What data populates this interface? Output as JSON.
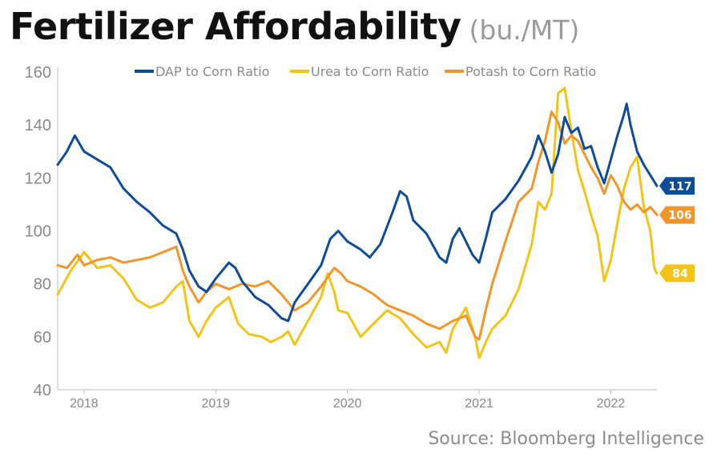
{
  "title": "Fertilizer Affordability",
  "subtitle": "(bu./MT)",
  "source": "Source: Bloomberg Intelligence",
  "chart_data": {
    "type": "line",
    "x_ticks": [
      "2018",
      "2019",
      "2020",
      "2021",
      "2022"
    ],
    "x_range": [
      2017.8,
      2022.15
    ],
    "ylim": [
      40,
      160
    ],
    "y_ticks": [
      40,
      60,
      80,
      100,
      120,
      140,
      160
    ],
    "grid": false,
    "legend_position": "top",
    "series": [
      {
        "name": "DAP to Corn Ratio",
        "color": "#0E4C9A",
        "end_label": "117",
        "points": [
          [
            2017.8,
            125
          ],
          [
            2017.87,
            130
          ],
          [
            2017.93,
            136
          ],
          [
            2018.0,
            130
          ],
          [
            2018.1,
            127
          ],
          [
            2018.2,
            124
          ],
          [
            2018.3,
            116
          ],
          [
            2018.4,
            111
          ],
          [
            2018.5,
            107
          ],
          [
            2018.6,
            102
          ],
          [
            2018.7,
            99
          ],
          [
            2018.75,
            93
          ],
          [
            2018.8,
            85
          ],
          [
            2018.87,
            79
          ],
          [
            2018.93,
            77
          ],
          [
            2019.0,
            82
          ],
          [
            2019.1,
            88
          ],
          [
            2019.15,
            86
          ],
          [
            2019.2,
            81
          ],
          [
            2019.3,
            75
          ],
          [
            2019.4,
            72
          ],
          [
            2019.5,
            67
          ],
          [
            2019.55,
            66
          ],
          [
            2019.6,
            73
          ],
          [
            2019.7,
            80
          ],
          [
            2019.8,
            87
          ],
          [
            2019.87,
            97
          ],
          [
            2019.93,
            100
          ],
          [
            2020.0,
            96
          ],
          [
            2020.1,
            93
          ],
          [
            2020.17,
            90
          ],
          [
            2020.25,
            95
          ],
          [
            2020.35,
            108
          ],
          [
            2020.4,
            115
          ],
          [
            2020.45,
            113
          ],
          [
            2020.5,
            104
          ],
          [
            2020.6,
            99
          ],
          [
            2020.7,
            90
          ],
          [
            2020.75,
            88
          ],
          [
            2020.8,
            97
          ],
          [
            2020.85,
            101
          ],
          [
            2020.9,
            96
          ],
          [
            2020.95,
            91
          ],
          [
            2021.0,
            88
          ],
          [
            2021.05,
            97
          ],
          [
            2021.1,
            107
          ],
          [
            2021.2,
            112
          ],
          [
            2021.3,
            119
          ],
          [
            2021.4,
            128
          ],
          [
            2021.45,
            136
          ],
          [
            2021.5,
            130
          ],
          [
            2021.55,
            122
          ],
          [
            2021.6,
            129
          ],
          [
            2021.65,
            143
          ],
          [
            2021.7,
            137
          ],
          [
            2021.75,
            139
          ],
          [
            2021.8,
            131
          ],
          [
            2021.85,
            132
          ],
          [
            2021.9,
            124
          ],
          [
            2021.95,
            118
          ],
          [
            2022.0,
            127
          ],
          [
            2022.05,
            136
          ],
          [
            2022.1,
            144
          ],
          [
            2022.12,
            148
          ],
          [
            2022.15,
            140
          ],
          [
            2022.2,
            130
          ],
          [
            2022.25,
            125
          ],
          [
            2022.3,
            121
          ],
          [
            2022.35,
            117
          ]
        ]
      },
      {
        "name": "Urea to Corn Ratio",
        "color": "#F2C41A",
        "end_label": "84",
        "points": [
          [
            2017.8,
            76
          ],
          [
            2017.9,
            85
          ],
          [
            2018.0,
            92
          ],
          [
            2018.1,
            86
          ],
          [
            2018.2,
            87
          ],
          [
            2018.3,
            82
          ],
          [
            2018.4,
            74
          ],
          [
            2018.5,
            71
          ],
          [
            2018.6,
            73
          ],
          [
            2018.7,
            79
          ],
          [
            2018.75,
            81
          ],
          [
            2018.8,
            66
          ],
          [
            2018.87,
            60
          ],
          [
            2018.93,
            66
          ],
          [
            2019.0,
            71
          ],
          [
            2019.1,
            75
          ],
          [
            2019.17,
            65
          ],
          [
            2019.25,
            61
          ],
          [
            2019.35,
            60
          ],
          [
            2019.42,
            58
          ],
          [
            2019.5,
            60
          ],
          [
            2019.55,
            62
          ],
          [
            2019.6,
            57
          ],
          [
            2019.7,
            66
          ],
          [
            2019.8,
            75
          ],
          [
            2019.85,
            84
          ],
          [
            2019.9,
            77
          ],
          [
            2019.93,
            70
          ],
          [
            2020.0,
            69
          ],
          [
            2020.1,
            60
          ],
          [
            2020.2,
            65
          ],
          [
            2020.3,
            70
          ],
          [
            2020.4,
            67
          ],
          [
            2020.5,
            61
          ],
          [
            2020.6,
            56
          ],
          [
            2020.7,
            58
          ],
          [
            2020.75,
            54
          ],
          [
            2020.8,
            63
          ],
          [
            2020.9,
            71
          ],
          [
            2020.97,
            60
          ],
          [
            2021.0,
            52
          ],
          [
            2021.05,
            58
          ],
          [
            2021.1,
            63
          ],
          [
            2021.2,
            68
          ],
          [
            2021.3,
            78
          ],
          [
            2021.4,
            95
          ],
          [
            2021.45,
            111
          ],
          [
            2021.5,
            108
          ],
          [
            2021.55,
            114
          ],
          [
            2021.6,
            152
          ],
          [
            2021.65,
            154
          ],
          [
            2021.7,
            138
          ],
          [
            2021.75,
            123
          ],
          [
            2021.8,
            115
          ],
          [
            2021.85,
            106
          ],
          [
            2021.9,
            98
          ],
          [
            2021.95,
            81
          ],
          [
            2022.0,
            89
          ],
          [
            2022.05,
            103
          ],
          [
            2022.1,
            116
          ],
          [
            2022.15,
            124
          ],
          [
            2022.2,
            128
          ],
          [
            2022.25,
            109
          ],
          [
            2022.3,
            100
          ],
          [
            2022.33,
            86
          ],
          [
            2022.35,
            84
          ]
        ]
      },
      {
        "name": "Potash to Corn Ratio",
        "color": "#F0962A",
        "end_label": "106",
        "points": [
          [
            2017.8,
            87
          ],
          [
            2017.87,
            86
          ],
          [
            2017.95,
            91
          ],
          [
            2018.0,
            87
          ],
          [
            2018.1,
            89
          ],
          [
            2018.2,
            90
          ],
          [
            2018.3,
            88
          ],
          [
            2018.4,
            89
          ],
          [
            2018.5,
            90
          ],
          [
            2018.6,
            92
          ],
          [
            2018.7,
            94
          ],
          [
            2018.75,
            85
          ],
          [
            2018.8,
            79
          ],
          [
            2018.87,
            73
          ],
          [
            2018.93,
            77
          ],
          [
            2019.0,
            80
          ],
          [
            2019.1,
            78
          ],
          [
            2019.2,
            80
          ],
          [
            2019.3,
            79
          ],
          [
            2019.4,
            81
          ],
          [
            2019.5,
            76
          ],
          [
            2019.6,
            70
          ],
          [
            2019.7,
            73
          ],
          [
            2019.8,
            79
          ],
          [
            2019.9,
            86
          ],
          [
            2019.95,
            84
          ],
          [
            2020.0,
            81
          ],
          [
            2020.1,
            79
          ],
          [
            2020.2,
            76
          ],
          [
            2020.3,
            72
          ],
          [
            2020.4,
            70
          ],
          [
            2020.5,
            68
          ],
          [
            2020.6,
            65
          ],
          [
            2020.7,
            63
          ],
          [
            2020.8,
            66
          ],
          [
            2020.9,
            68
          ],
          [
            2020.97,
            60
          ],
          [
            2021.0,
            59
          ],
          [
            2021.05,
            70
          ],
          [
            2021.1,
            80
          ],
          [
            2021.2,
            96
          ],
          [
            2021.3,
            111
          ],
          [
            2021.4,
            116
          ],
          [
            2021.45,
            126
          ],
          [
            2021.5,
            134
          ],
          [
            2021.55,
            145
          ],
          [
            2021.6,
            141
          ],
          [
            2021.65,
            133
          ],
          [
            2021.7,
            136
          ],
          [
            2021.75,
            134
          ],
          [
            2021.8,
            129
          ],
          [
            2021.85,
            124
          ],
          [
            2021.9,
            120
          ],
          [
            2021.95,
            114
          ],
          [
            2022.0,
            121
          ],
          [
            2022.05,
            117
          ],
          [
            2022.1,
            111
          ],
          [
            2022.15,
            108
          ],
          [
            2022.2,
            110
          ],
          [
            2022.25,
            107
          ],
          [
            2022.3,
            109
          ],
          [
            2022.35,
            106
          ]
        ]
      }
    ]
  }
}
